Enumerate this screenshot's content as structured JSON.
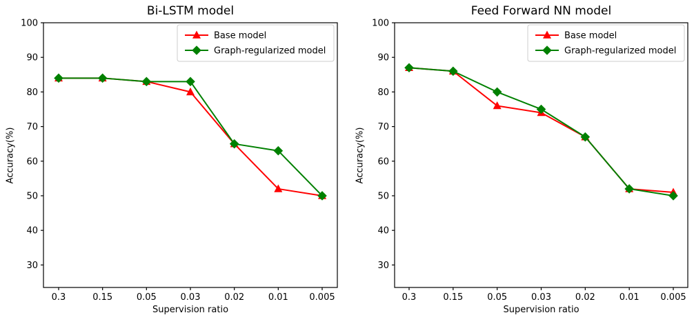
{
  "figure": {
    "background_color": "#ffffff",
    "text_color": "#000000",
    "spine_color": "#000000",
    "legend_border_color": "#cccccc"
  },
  "chart_data": [
    {
      "type": "line",
      "title": "Bi-LSTM model",
      "xlabel": "Supervision ratio",
      "ylabel": "Accuracy(%)",
      "categories": [
        "0.3",
        "0.15",
        "0.05",
        "0.03",
        "0.02",
        "0.01",
        "0.005"
      ],
      "yticks": [
        30,
        40,
        50,
        60,
        70,
        80,
        90,
        100
      ],
      "ylim": [
        23.5,
        100
      ],
      "grid": false,
      "legend_position": "upper right",
      "series": [
        {
          "name": "Base model",
          "color": "#ff0000",
          "marker": "triangle-up",
          "values": [
            84,
            84,
            83,
            80,
            65,
            52,
            50
          ]
        },
        {
          "name": "Graph-regularized model",
          "color": "#008000",
          "marker": "diamond",
          "values": [
            84,
            84,
            83,
            83,
            65,
            63,
            50
          ]
        }
      ]
    },
    {
      "type": "line",
      "title": "Feed Forward NN model",
      "xlabel": "Supervision ratio",
      "ylabel": "Accuracy(%)",
      "categories": [
        "0.3",
        "0.15",
        "0.05",
        "0.03",
        "0.02",
        "0.01",
        "0.005"
      ],
      "yticks": [
        30,
        40,
        50,
        60,
        70,
        80,
        90,
        100
      ],
      "ylim": [
        23.5,
        100
      ],
      "grid": false,
      "legend_position": "upper right",
      "series": [
        {
          "name": "Base model",
          "color": "#ff0000",
          "marker": "triangle-up",
          "values": [
            87,
            86,
            76,
            74,
            67,
            52,
            51
          ]
        },
        {
          "name": "Graph-regularized model",
          "color": "#008000",
          "marker": "diamond",
          "values": [
            87,
            86,
            80,
            75,
            67,
            52,
            50
          ]
        }
      ]
    }
  ]
}
